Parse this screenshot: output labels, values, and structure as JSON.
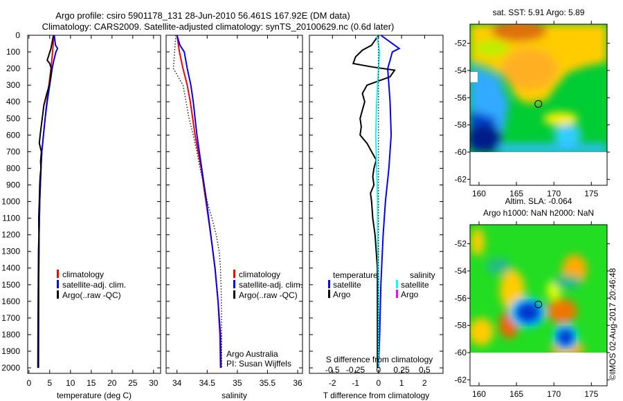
{
  "title_line1": "Argo profile: csiro 5901178_131 28-Jun-2010 56.461S 167.92E (DM data)",
  "title_line2": "Climatology: CARS2009. Satellite-adjusted climatology: synTS_20100629.nc (0.6d later)",
  "colors": {
    "climatology": "#ff0000",
    "satellite": "#0000ff",
    "argo": "#000000",
    "sal_satellite": "#00ffff",
    "sal_argo": "#ff00ff"
  },
  "chart_data": [
    {
      "type": "line",
      "title": "",
      "xlabel": "temperature (deg C)",
      "ylabel": "",
      "xlim": [
        -0.3,
        31.7
      ],
      "ylim": [
        2033,
        0
      ],
      "xticks": [
        0,
        5,
        10,
        15,
        20,
        25,
        30
      ],
      "yticks": [
        0,
        100,
        200,
        300,
        400,
        500,
        600,
        700,
        800,
        900,
        1000,
        1100,
        1200,
        1300,
        1400,
        1500,
        1600,
        1700,
        1800,
        1900,
        2000
      ],
      "legend": {
        "placement": "center-bottom",
        "entries": [
          "climatology",
          "satellite-adj. clim.",
          "Argo(..raw -QC)"
        ]
      },
      "series": [
        {
          "name": "climatology",
          "style": "solid",
          "depth": [
            0,
            100,
            200,
            300,
            400,
            500,
            600,
            700,
            800,
            1000,
            1200,
            1500,
            2000
          ],
          "values": [
            6.0,
            5.7,
            5.3,
            4.8,
            4.3,
            3.9,
            3.5,
            3.1,
            2.9,
            2.6,
            2.45,
            2.35,
            2.3
          ]
        },
        {
          "name": "satellite-adj. clim.",
          "style": "solid",
          "depth": [
            0,
            60,
            80,
            100,
            150,
            200,
            300,
            400,
            500,
            600,
            700,
            800,
            1000,
            1200,
            1500,
            2000
          ],
          "values": [
            6.1,
            6.4,
            6.9,
            6.5,
            6.0,
            5.6,
            5.0,
            4.4,
            3.9,
            3.5,
            3.1,
            2.9,
            2.6,
            2.45,
            2.35,
            2.3
          ]
        },
        {
          "name": "Argo(..raw -QC)",
          "style": "solid",
          "depth": [
            0,
            80,
            150,
            170,
            200,
            260,
            300,
            360,
            420,
            480,
            540,
            600,
            650,
            700,
            760,
            800,
            850,
            900,
            1000,
            1100,
            1200,
            1300,
            1500,
            1700,
            2000
          ],
          "values": [
            5.9,
            5.3,
            4.4,
            5.0,
            5.4,
            5.2,
            4.9,
            4.2,
            3.6,
            3.3,
            3.0,
            2.7,
            2.5,
            3.0,
            2.8,
            2.9,
            2.7,
            2.6,
            2.5,
            2.35,
            2.4,
            2.3,
            2.25,
            2.2,
            2.15
          ]
        }
      ]
    },
    {
      "type": "line",
      "xlabel": "salinity",
      "xlim": [
        33.82,
        36.08
      ],
      "ylim": [
        2033,
        0
      ],
      "xticks": [
        34,
        34.5,
        35,
        35.5,
        36
      ],
      "xticklabels": [
        "34",
        "34.5",
        "35",
        "35.5",
        "36"
      ],
      "legend": {
        "placement": "center-bottom",
        "entries": [
          "climatology",
          "satellite-adj. clim.",
          "Argo(..raw -QC)"
        ]
      },
      "annotations": [
        "Argo Australia",
        "PI: Susan Wijffels"
      ],
      "series": [
        {
          "name": "climatology",
          "style": "solid",
          "depth": [
            0,
            100,
            200,
            300,
            400,
            500,
            600,
            700,
            800,
            900,
            1000,
            1200,
            1400,
            1600,
            1800,
            2000
          ],
          "values": [
            34.0,
            34.04,
            34.1,
            34.17,
            34.22,
            34.26,
            34.3,
            34.35,
            34.4,
            34.44,
            34.48,
            34.56,
            34.63,
            34.68,
            34.71,
            34.72
          ]
        },
        {
          "name": "satellite-adj. clim.",
          "style": "solid",
          "depth": [
            0,
            60,
            100,
            200,
            300,
            400,
            500,
            600,
            700,
            800,
            900,
            1000,
            1200,
            1400,
            1600,
            1800,
            2000
          ],
          "values": [
            34.0,
            34.05,
            34.12,
            34.17,
            34.23,
            34.27,
            34.3,
            34.33,
            34.37,
            34.41,
            34.45,
            34.49,
            34.56,
            34.63,
            34.68,
            34.72,
            34.73
          ]
        },
        {
          "name": "Argo(..raw -QC)",
          "style": "dotted",
          "depth": [
            0,
            100,
            200,
            250,
            300,
            400,
            500,
            600,
            700,
            800,
            900,
            1000,
            1100,
            1200,
            1300,
            1400,
            1500,
            1700,
            2000
          ],
          "values": [
            33.98,
            33.96,
            33.94,
            34.02,
            34.1,
            34.15,
            34.2,
            34.27,
            34.33,
            34.38,
            34.45,
            34.5,
            34.58,
            34.65,
            34.7,
            34.72,
            34.73,
            34.74,
            34.74
          ]
        }
      ]
    },
    {
      "type": "line",
      "xlabel": "T difference from climatology",
      "xlabel2": "S difference from climatology",
      "xlim": [
        -3,
        2.8
      ],
      "ylim": [
        2033,
        0
      ],
      "xticks": [
        -2,
        -1,
        0,
        1,
        2
      ],
      "xticklabels": [
        "-2",
        "-1",
        "0",
        "1",
        "2"
      ],
      "sticks": [
        -0.5,
        -0.25,
        0,
        0.25,
        0.5
      ],
      "sticklabels": [
        "-0.5",
        "-0.25",
        "0",
        "0.25",
        "0.5"
      ],
      "legend": {
        "placement": "center-bottom",
        "groups": [
          {
            "title": "temperature",
            "entries": [
              "satellite",
              "Argo"
            ]
          },
          {
            "title": "salinity",
            "entries": [
              "satellite",
              "Argo"
            ]
          }
        ]
      },
      "series": [
        {
          "name": "temperature satellite",
          "style": "solid",
          "depth": [
            0,
            60,
            80,
            100,
            150,
            200,
            300,
            400,
            600,
            800,
            1000,
            1200,
            1500,
            1800,
            2000
          ],
          "values": [
            0.1,
            0.7,
            0.9,
            0.6,
            0.5,
            0.4,
            0.45,
            0.5,
            0.55,
            0.45,
            0.3,
            0.2,
            0.1,
            0.05,
            0.0
          ]
        },
        {
          "name": "temperature Argo",
          "style": "solid",
          "depth": [
            0,
            60,
            90,
            130,
            170,
            190,
            210,
            250,
            300,
            350,
            400,
            450,
            500,
            550,
            600,
            650,
            700,
            750,
            800,
            850,
            900,
            950,
            1000,
            1100,
            1200,
            1400,
            1600,
            2000
          ],
          "values": [
            0.0,
            -0.3,
            -0.7,
            -1.0,
            -1.1,
            -0.3,
            0.7,
            0.5,
            -0.5,
            -0.7,
            -0.6,
            -0.7,
            -0.8,
            -0.75,
            -0.8,
            -0.5,
            -0.3,
            -0.1,
            -0.2,
            -0.25,
            -0.2,
            -0.35,
            -0.3,
            -0.25,
            -0.15,
            -0.05,
            -0.05,
            -0.05
          ]
        },
        {
          "name": "salinity satellite",
          "style": "solid",
          "sdepth": [
            0,
            60,
            100,
            200,
            400,
            600,
            800,
            1000,
            1200,
            1500,
            2000
          ],
          "values": [
            -0.02,
            0.0,
            0.01,
            0.0,
            -0.02,
            -0.03,
            -0.02,
            -0.01,
            -0.01,
            0.0,
            0.0
          ]
        },
        {
          "name": "zero",
          "style": "dotted",
          "depth": [
            0,
            2033
          ],
          "values": [
            0,
            0
          ]
        }
      ]
    },
    {
      "type": "heatmap",
      "title": "sat. SST: 5.91  Argo: 5.89",
      "xlim": [
        158.8,
        177.1
      ],
      "ylim": [
        -62.6,
        -50.6
      ],
      "xticks": [
        160,
        165,
        170,
        175
      ],
      "yticks": [
        -52,
        -54,
        -56,
        -58,
        -60,
        -62
      ],
      "yticklabels": [
        "-52",
        "-54",
        "-56",
        "-58",
        "-60",
        "-62"
      ],
      "marker": {
        "lon": 167.92,
        "lat": -56.461
      }
    },
    {
      "type": "heatmap",
      "title": "Altim. SLA: -0.064",
      "subtitle": "Argo h1000: NaN h2000: NaN",
      "xlim": [
        158.8,
        177.1
      ],
      "ylim": [
        -62.6,
        -50.6
      ],
      "xticks": [
        160,
        165,
        170,
        175
      ],
      "yticks": [
        -52,
        -54,
        -56,
        -58,
        -60,
        -62
      ],
      "yticklabels": [
        "-52",
        "-54",
        "-56",
        "-58",
        "-60",
        "-62"
      ],
      "marker": {
        "lon": 167.92,
        "lat": -56.461
      }
    }
  ],
  "credit": "©IMOS 02-Aug-2017 20:46:48"
}
